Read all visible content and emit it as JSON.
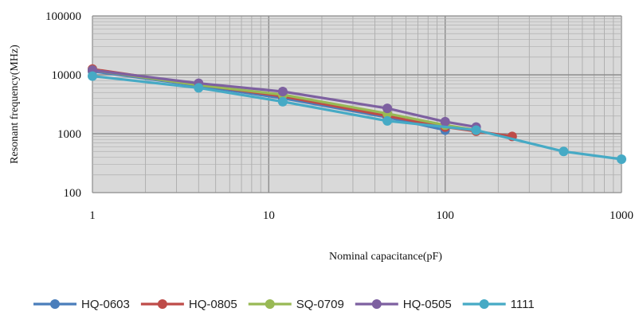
{
  "chart_data": {
    "type": "line",
    "title": "",
    "xlabel": "Nominal capacitance(pF)",
    "ylabel": "Resonant frequency(MHz)",
    "x_scale": "log",
    "y_scale": "log",
    "xlim": [
      1,
      1000
    ],
    "ylim": [
      100,
      100000
    ],
    "x_ticks": [
      "1",
      "10",
      "100",
      "1000"
    ],
    "y_ticks": [
      "100",
      "1000",
      "10000",
      "100000"
    ],
    "grid": true,
    "legend_position": "bottom",
    "series": [
      {
        "name": "HQ-0603",
        "color": "#4a7ebb",
        "points": [
          [
            1,
            11500
          ],
          [
            4,
            6500
          ],
          [
            12,
            4000
          ],
          [
            47,
            1900
          ],
          [
            100,
            1150
          ]
        ]
      },
      {
        "name": "HQ-0805",
        "color": "#be4b48",
        "points": [
          [
            1,
            12500
          ],
          [
            4,
            6800
          ],
          [
            12,
            4300
          ],
          [
            47,
            2000
          ],
          [
            100,
            1300
          ],
          [
            150,
            1100
          ],
          [
            240,
            900
          ]
        ]
      },
      {
        "name": "SQ-0709",
        "color": "#98b954",
        "points": [
          [
            1,
            12000
          ],
          [
            4,
            6700
          ],
          [
            12,
            4600
          ],
          [
            47,
            2200
          ],
          [
            100,
            1400
          ],
          [
            150,
            1150
          ]
        ]
      },
      {
        "name": "HQ-0505",
        "color": "#7d60a0",
        "points": [
          [
            1,
            12000
          ],
          [
            4,
            7200
          ],
          [
            12,
            5200
          ],
          [
            47,
            2700
          ],
          [
            100,
            1600
          ],
          [
            150,
            1300
          ]
        ]
      },
      {
        "name": "1111",
        "color": "#46aac5",
        "points": [
          [
            1,
            9500
          ],
          [
            4,
            6000
          ],
          [
            12,
            3500
          ],
          [
            47,
            1650
          ],
          [
            150,
            1150
          ],
          [
            470,
            500
          ],
          [
            1000,
            370
          ]
        ]
      }
    ]
  }
}
